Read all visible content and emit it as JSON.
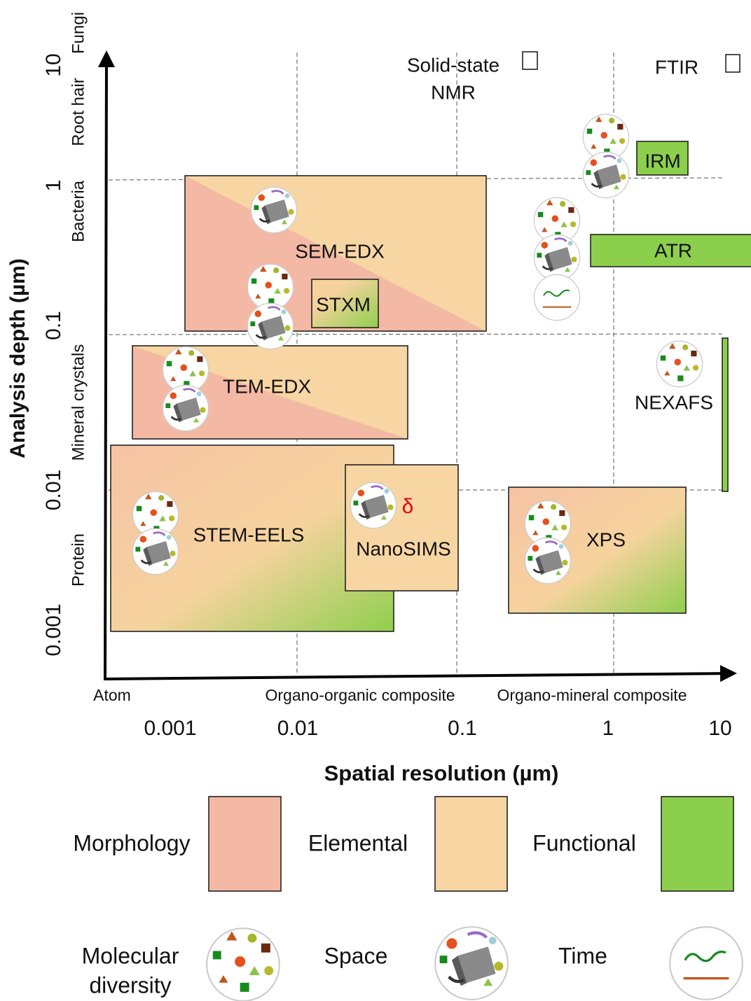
{
  "axes": {
    "y_title": "Analysis depth (µm)",
    "x_title": "Spatial resolution (µm)",
    "y_ticks": [
      "0.001",
      "0.01",
      "0.1",
      "1",
      "10"
    ],
    "x_ticks": [
      "0.001",
      "0.01",
      "0.1",
      "1",
      "10"
    ],
    "y_scale_labels": [
      "Protein",
      "Mineral crystals",
      "Bacteria",
      "Root hair",
      "Fungi"
    ],
    "x_scale_labels": [
      "Atom",
      "Organo-organic composite",
      "Organo-mineral composite"
    ]
  },
  "techniques": [
    {
      "lines": [
        "Solid-state",
        "NMR"
      ]
    },
    {
      "lines": [
        "FTIR"
      ]
    },
    {
      "lines": [
        "IRM"
      ]
    },
    {
      "lines": [
        "ATR"
      ]
    },
    {
      "lines": [
        "SEM-EDX"
      ]
    },
    {
      "lines": [
        "STXM"
      ]
    },
    {
      "lines": [
        "TEM-EDX"
      ]
    },
    {
      "lines": [
        "NEXAFS"
      ]
    },
    {
      "lines": [
        "STEM-EELS"
      ]
    },
    {
      "lines": [
        "NanoSIMS"
      ]
    },
    {
      "lines": [
        "XPS"
      ]
    }
  ],
  "annotations": {
    "isotope": "δ"
  },
  "legend": {
    "colors": [
      {
        "label": "Morphology"
      },
      {
        "label": "Elemental"
      },
      {
        "label": "Functional"
      }
    ],
    "icons": [
      {
        "lines": [
          "Molecular",
          "diversity"
        ]
      },
      {
        "lines": [
          "Space"
        ]
      },
      {
        "lines": [
          "Time"
        ]
      }
    ]
  }
}
